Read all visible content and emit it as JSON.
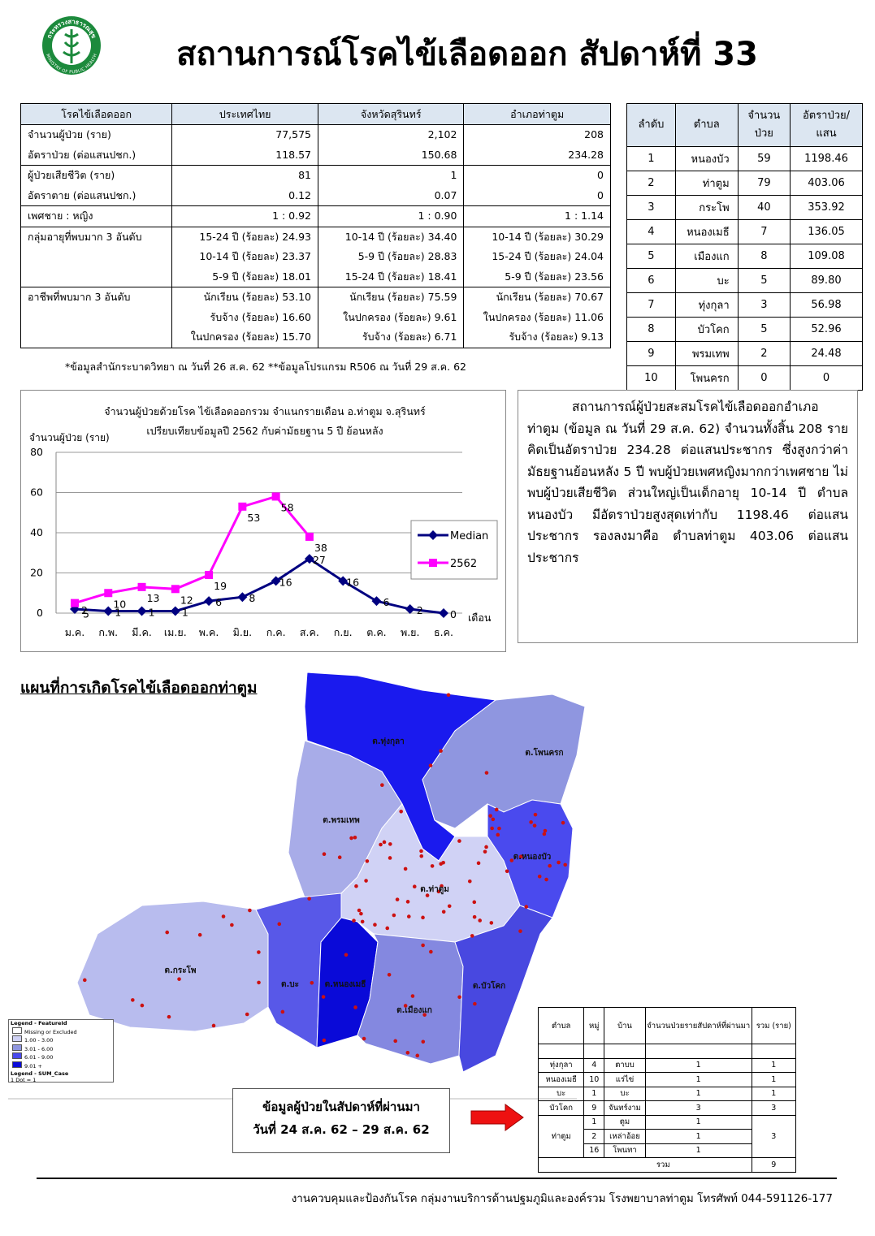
{
  "logo": {
    "top": "กระทรวงสาธารณสุข",
    "bottom": "MINISTRY OF PUBLIC HEALTH"
  },
  "header": {
    "title": "สถานการณ์โรคไข้เลือดออก สัปดาห์ที่ 33"
  },
  "summary_table": {
    "header": [
      "โรคไข้เลือดออก",
      "ประเทศไทย",
      "จังหวัดสุรินทร์",
      "อำเภอท่าตูม"
    ],
    "rows": [
      {
        "label": [
          "จำนวนผู้ป่วย (ราย)",
          "อัตราป่วย (ต่อแสนปชก.)"
        ],
        "cells": [
          [
            "77,575",
            "118.57"
          ],
          [
            "2,102",
            "150.68"
          ],
          [
            "208",
            "234.28"
          ]
        ]
      },
      {
        "label": [
          "ผู้ป่วยเสียชีวิต (ราย)",
          "อัตราตาย (ต่อแสนปชก.)"
        ],
        "cells": [
          [
            "81",
            "0.12"
          ],
          [
            "1",
            "0.07"
          ],
          [
            "0",
            "0"
          ]
        ]
      },
      {
        "label": [
          "เพศชาย : หญิง"
        ],
        "cells": [
          [
            "1 : 0.92"
          ],
          [
            "1 : 0.90"
          ],
          [
            "1 : 1.14"
          ]
        ]
      },
      {
        "label": [
          "กลุ่มอายุที่พบมาก 3 อันดับ"
        ],
        "cells": [
          [
            "15-24 ปี (ร้อยละ) 24.93",
            "10-14 ปี (ร้อยละ) 23.37",
            "5-9 ปี (ร้อยละ) 18.01"
          ],
          [
            "10-14 ปี (ร้อยละ) 34.40",
            "5-9 ปี (ร้อยละ) 28.83",
            "15-24 ปี (ร้อยละ) 18.41"
          ],
          [
            "10-14 ปี (ร้อยละ) 30.29",
            "15-24 ปี (ร้อยละ) 24.04",
            "5-9 ปี (ร้อยละ) 23.56"
          ]
        ]
      },
      {
        "label": [
          "อาชีพที่พบมาก 3 อันดับ"
        ],
        "cells": [
          [
            "นักเรียน (ร้อยละ) 53.10",
            "รับจ้าง (ร้อยละ) 16.60",
            "ในปกครอง (ร้อยละ) 15.70"
          ],
          [
            "นักเรียน (ร้อยละ) 75.59",
            "ในปกครอง (ร้อยละ) 9.61",
            "รับจ้าง (ร้อยละ) 6.71"
          ],
          [
            "นักเรียน (ร้อยละ) 70.67",
            "ในปกครอง (ร้อยละ) 11.06",
            "รับจ้าง (ร้อยละ) 9.13"
          ]
        ]
      }
    ]
  },
  "note": "*ข้อมูลสำนักระบาดวิทยา ณ วันที่ 26 ส.ค. 62 **ข้อมูลโปรแกรม R506 ณ วันที่ 29 ส.ค. 62",
  "rank_table": {
    "header": [
      [
        "ลำดับ"
      ],
      [
        "ตำบล"
      ],
      [
        "จำนวน",
        "ป่วย"
      ],
      [
        "อัตราป่วย/",
        "แสน"
      ]
    ],
    "rows": [
      [
        "1",
        "หนองบัว",
        "59",
        "1198.46"
      ],
      [
        "2",
        "ท่าตูม",
        "79",
        "403.06"
      ],
      [
        "3",
        "กระโพ",
        "40",
        "353.92"
      ],
      [
        "4",
        "หนองเมธี",
        "7",
        "136.05"
      ],
      [
        "5",
        "เมืองแก",
        "8",
        "109.08"
      ],
      [
        "6",
        "บะ",
        "5",
        "89.80"
      ],
      [
        "7",
        "ทุ่งกุลา",
        "3",
        "56.98"
      ],
      [
        "8",
        "บัวโคก",
        "5",
        "52.96"
      ],
      [
        "9",
        "พรมเทพ",
        "2",
        "24.48"
      ],
      [
        "10",
        "โพนครก",
        "0",
        "0"
      ]
    ]
  },
  "chart_data": {
    "type": "line",
    "title": [
      "จำนวนผู้ป่วยด้วยโรค  ไข้เลือดออกรวม จำแนกรายเดือน อ.ท่าตูม จ.สุรินทร์",
      "เปรียบเทียบข้อมูลปี  2562  กับค่ามัธยฐาน 5 ปี ย้อนหลัง"
    ],
    "y_label": "จำนวนผู้ป่วย (ราย)",
    "x_label": "เดือน",
    "categories": [
      "ม.ค.",
      "ก.พ.",
      "มี.ค.",
      "เม.ย.",
      "พ.ค.",
      "มิ.ย.",
      "ก.ค.",
      "ส.ค.",
      "ก.ย.",
      "ต.ค.",
      "พ.ย.",
      "ธ.ค."
    ],
    "series": [
      {
        "name": "Median",
        "color": "#000080",
        "marker": "diamond",
        "values": [
          2,
          1,
          1,
          1,
          6,
          8,
          16,
          27,
          16,
          6,
          2,
          0
        ]
      },
      {
        "name": "2562",
        "color": "#ff00ff",
        "marker": "square",
        "values": [
          5,
          10,
          13,
          12,
          19,
          53,
          58,
          38,
          null,
          null,
          null,
          null
        ]
      }
    ],
    "ylim": [
      0,
      80
    ],
    "yticks": [
      0,
      20,
      40,
      60,
      80
    ],
    "grid": true,
    "legend": "right"
  },
  "summary_text": "สถานการณ์ผู้ป่วยสะสมโรคไข้เลือดออกอำเภอท่าตูม (ข้อมูล ณ วันที่ 29 ส.ค. 62) จำนวนทั้งสิ้น 208 ราย คิดเป็นอัตราป่วย 234.28 ต่อแสนประชากร ซึ่งสูงกว่าค่ามัธยฐานย้อนหลัง 5 ปี พบผู้ป่วยเพศหญิงมากกว่าเพศชาย ไม่พบผู้ป่วยเสียชีวิต ส่วนใหญ่เป็นเด็กอายุ 10-14 ปี ตำบล หนองบัว มีอัตราป่วยสูงสุดเท่ากับ 1198.46 ต่อแสนประชากร รองลงมาคือ ตำบลท่าตูม 403.06 ต่อแสนประชากร",
  "map": {
    "title": "แผนที่การเกิดโรคไข้เลือดออกท่าตูม",
    "regions": [
      "ต.ทุ่งกุลา",
      "ต.โพนครก",
      "ต.พรมเทพ",
      "ต.หนองบัว",
      "ต.ท่าตูม",
      "ต.กระโพ",
      "ต.บะ",
      "ต.หนองเมธี",
      "ต.เมืองแก",
      "ต.บัวโคก"
    ],
    "legend": [
      "Legend - FeatureId",
      "Missing or Excluded",
      "1.00 - 3.00",
      "3.01 - 6.00",
      "6.01 - 9.00",
      "9.01 +",
      "Legend - SUM_Case",
      "1 Dot = 1"
    ]
  },
  "week_box": [
    "ข้อมูลผู้ป่วยในสัปดาห์ที่ผ่านมา",
    "วันที่ 24 ส.ค. 62 – 29 ส.ค. 62"
  ],
  "week_table": {
    "header": [
      "ตำบล",
      "หมู่",
      "บ้าน",
      "จำนวนป่วยรายสัปดาห์ที่ผ่านมา",
      "รวม (ราย)"
    ],
    "groups": [
      {
        "tambon": "ทุ่งกุลา",
        "total": "1",
        "rows": [
          [
            "4",
            "ตาบบ",
            "1"
          ]
        ]
      },
      {
        "tambon": "หนองเมธี",
        "total": "1",
        "rows": [
          [
            "10",
            "แร่ไข่",
            "1"
          ]
        ]
      },
      {
        "tambon": "บะ",
        "total": "1",
        "rows": [
          [
            "1",
            "บะ",
            "1"
          ]
        ]
      },
      {
        "tambon": "บัวโคก",
        "total": "3",
        "rows": [
          [
            "9",
            "จันทร์งาม",
            "3"
          ]
        ]
      },
      {
        "tambon": "ท่าตูม",
        "total": "3",
        "rows": [
          [
            "1",
            "ตูม",
            "1"
          ],
          [
            "2",
            "เหล่าอ้อย",
            "1"
          ],
          [
            "16",
            "โพนทา",
            "1"
          ]
        ]
      }
    ],
    "total_label": "รวม",
    "total": "9"
  },
  "footer": "งานควบคุมและป้องกันโรค กลุ่มงานบริการด้านปฐมภูมิและองค์รวม  โรงพยาบาลท่าตูม  โทรศัพท์ 044-591126-177"
}
